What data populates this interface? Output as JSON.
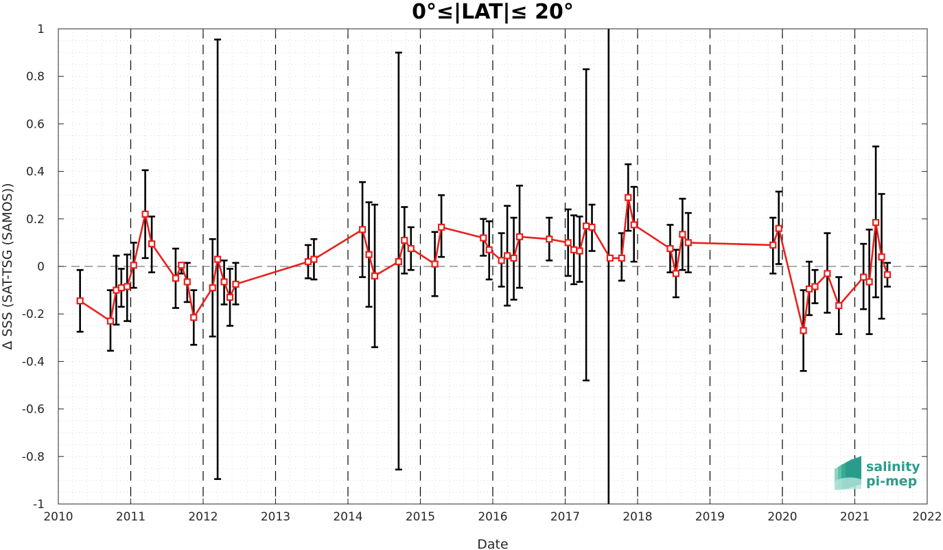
{
  "chart_data": {
    "type": "line",
    "title": "0°≤|LAT|≤ 20°",
    "xlabel": "Date",
    "ylabel": "Δ SSS (SAT-TSG (SAMOS))",
    "xlim": [
      2010,
      2022
    ],
    "ylim": [
      -1,
      1
    ],
    "x_ticks": [
      "2010",
      "2011",
      "2012",
      "2013",
      "2014",
      "2015",
      "2016",
      "2017",
      "2018",
      "2019",
      "2020",
      "2021",
      "2022"
    ],
    "y_ticks": [
      "-1",
      "-0.8",
      "-0.6",
      "-0.4",
      "-0.2",
      "0",
      "0.2",
      "0.4",
      "0.6",
      "0.8",
      "1"
    ],
    "grid": "dotted minor + major",
    "year_boundaries_dashed": [
      2011,
      2012,
      2013,
      2014,
      2015,
      2016,
      2017,
      2018,
      2019,
      2020,
      2021
    ],
    "solid_vertical_line": 2017.6,
    "zero_line": "dashed gray",
    "series": [
      {
        "marker": "square",
        "color": "#e8201c",
        "errorbar_color": "#000000",
        "points": [
          {
            "x": 2010.3,
            "y": -0.145,
            "lo": -0.275,
            "hi": -0.015
          },
          {
            "x": 2010.72,
            "y": -0.23,
            "lo": -0.355,
            "hi": -0.1
          },
          {
            "x": 2010.8,
            "y": -0.1,
            "lo": -0.245,
            "hi": 0.045
          },
          {
            "x": 2010.87,
            "y": -0.09,
            "lo": -0.17,
            "hi": -0.01
          },
          {
            "x": 2010.95,
            "y": -0.085,
            "lo": -0.23,
            "hi": 0.05
          },
          {
            "x": 2011.04,
            "y": 0.005,
            "lo": -0.09,
            "hi": 0.1
          },
          {
            "x": 2011.2,
            "y": 0.22,
            "lo": 0.035,
            "hi": 0.405
          },
          {
            "x": 2011.29,
            "y": 0.095,
            "lo": -0.025,
            "hi": 0.21
          },
          {
            "x": 2011.62,
            "y": -0.05,
            "lo": -0.175,
            "hi": 0.075
          },
          {
            "x": 2011.7,
            "y": 0.005,
            "lo": -0.03,
            "hi": 0.015
          },
          {
            "x": 2011.78,
            "y": -0.065,
            "lo": -0.15,
            "hi": 0.015
          },
          {
            "x": 2011.87,
            "y": -0.215,
            "lo": -0.33,
            "hi": -0.1
          },
          {
            "x": 2012.13,
            "y": -0.09,
            "lo": -0.295,
            "hi": 0.115
          },
          {
            "x": 2012.2,
            "y": 0.03,
            "lo": -0.895,
            "hi": 0.955
          },
          {
            "x": 2012.29,
            "y": -0.065,
            "lo": -0.16,
            "hi": 0.025
          },
          {
            "x": 2012.37,
            "y": -0.13,
            "lo": -0.25,
            "hi": -0.01
          },
          {
            "x": 2012.45,
            "y": -0.075,
            "lo": -0.16,
            "hi": 0.015
          },
          {
            "x": 2013.45,
            "y": 0.02,
            "lo": -0.05,
            "hi": 0.09
          },
          {
            "x": 2013.53,
            "y": 0.03,
            "lo": -0.055,
            "hi": 0.115
          },
          {
            "x": 2014.2,
            "y": 0.155,
            "lo": -0.045,
            "hi": 0.355
          },
          {
            "x": 2014.29,
            "y": 0.05,
            "lo": -0.17,
            "hi": 0.27
          },
          {
            "x": 2014.37,
            "y": -0.04,
            "lo": -0.34,
            "hi": 0.26
          },
          {
            "x": 2014.7,
            "y": 0.02,
            "lo": -0.855,
            "hi": 0.9
          },
          {
            "x": 2014.78,
            "y": 0.11,
            "lo": -0.03,
            "hi": 0.25
          },
          {
            "x": 2014.87,
            "y": 0.075,
            "lo": -0.015,
            "hi": 0.165
          },
          {
            "x": 2015.2,
            "y": 0.01,
            "lo": -0.125,
            "hi": 0.145
          },
          {
            "x": 2015.29,
            "y": 0.165,
            "lo": 0.04,
            "hi": 0.3
          },
          {
            "x": 2015.87,
            "y": 0.12,
            "lo": 0.045,
            "hi": 0.2
          },
          {
            "x": 2015.95,
            "y": 0.07,
            "lo": -0.055,
            "hi": 0.19
          },
          {
            "x": 2016.12,
            "y": 0.025,
            "lo": -0.085,
            "hi": 0.14
          },
          {
            "x": 2016.2,
            "y": 0.045,
            "lo": -0.165,
            "hi": 0.255
          },
          {
            "x": 2016.29,
            "y": 0.035,
            "lo": -0.14,
            "hi": 0.205
          },
          {
            "x": 2016.37,
            "y": 0.125,
            "lo": -0.09,
            "hi": 0.34
          },
          {
            "x": 2016.78,
            "y": 0.115,
            "lo": 0.025,
            "hi": 0.205
          },
          {
            "x": 2017.04,
            "y": 0.1,
            "lo": -0.04,
            "hi": 0.24
          },
          {
            "x": 2017.12,
            "y": 0.07,
            "lo": -0.075,
            "hi": 0.215
          },
          {
            "x": 2017.2,
            "y": 0.065,
            "lo": -0.065,
            "hi": 0.21
          },
          {
            "x": 2017.29,
            "y": 0.17,
            "lo": -0.48,
            "hi": 0.83
          },
          {
            "x": 2017.37,
            "y": 0.165,
            "lo": 0.065,
            "hi": 0.26
          },
          {
            "x": 2017.62,
            "y": 0.035,
            "lo": 0.035,
            "hi": 0.035
          },
          {
            "x": 2017.78,
            "y": 0.035,
            "lo": -0.06,
            "hi": 0.14
          },
          {
            "x": 2017.87,
            "y": 0.29,
            "lo": 0.15,
            "hi": 0.43
          },
          {
            "x": 2017.95,
            "y": 0.175,
            "lo": 0.02,
            "hi": 0.335
          },
          {
            "x": 2018.45,
            "y": 0.075,
            "lo": -0.025,
            "hi": 0.175
          },
          {
            "x": 2018.53,
            "y": -0.03,
            "lo": -0.13,
            "hi": 0.07
          },
          {
            "x": 2018.62,
            "y": 0.135,
            "lo": -0.015,
            "hi": 0.285
          },
          {
            "x": 2018.7,
            "y": 0.1,
            "lo": -0.025,
            "hi": 0.225
          },
          {
            "x": 2019.87,
            "y": 0.09,
            "lo": -0.03,
            "hi": 0.205
          },
          {
            "x": 2019.95,
            "y": 0.16,
            "lo": 0.01,
            "hi": 0.315
          },
          {
            "x": 2020.29,
            "y": -0.27,
            "lo": -0.44,
            "hi": -0.1
          },
          {
            "x": 2020.37,
            "y": -0.095,
            "lo": -0.205,
            "hi": 0.02
          },
          {
            "x": 2020.45,
            "y": -0.085,
            "lo": -0.155,
            "hi": -0.015
          },
          {
            "x": 2020.62,
            "y": -0.03,
            "lo": -0.195,
            "hi": 0.14
          },
          {
            "x": 2020.78,
            "y": -0.165,
            "lo": -0.285,
            "hi": -0.045
          },
          {
            "x": 2021.12,
            "y": -0.045,
            "lo": -0.18,
            "hi": 0.095
          },
          {
            "x": 2021.2,
            "y": -0.065,
            "lo": -0.285,
            "hi": 0.155
          },
          {
            "x": 2021.29,
            "y": 0.185,
            "lo": -0.13,
            "hi": 0.505
          },
          {
            "x": 2021.37,
            "y": 0.04,
            "lo": -0.22,
            "hi": 0.305
          },
          {
            "x": 2021.45,
            "y": -0.035,
            "lo": -0.085,
            "hi": 0.015
          }
        ]
      }
    ]
  },
  "logo": {
    "line1": "salinity",
    "line2": "pi-mep",
    "icon": "wave-stack-icon",
    "color": "#2a9c8c"
  },
  "colors": {
    "line": "#e8201c",
    "errorbar": "#000000",
    "axis": "#262626",
    "grid": "#c8c8c8"
  }
}
